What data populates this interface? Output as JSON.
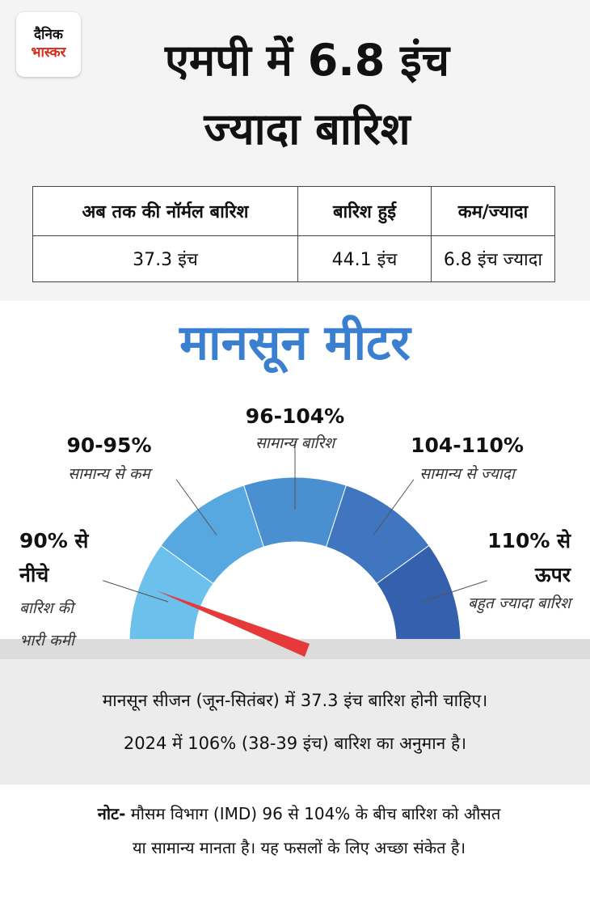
{
  "logo": {
    "line1": "दैनिक",
    "line2": "भास्कर"
  },
  "title": {
    "line1": "एमपी में 6.8 इंच",
    "line2": "ज्यादा बारिश"
  },
  "table": {
    "header": [
      "अब तक की नॉर्मल बारिश",
      "बारिश हुई",
      "कम/ज्यादा"
    ],
    "rows": [
      [
        "37.3 इंच",
        "44.1 इंच",
        "6.8 इंच ज्यादा"
      ]
    ]
  },
  "meter": {
    "title": "मानसून मीटर",
    "segments": [
      {
        "range": "90% से नीचे",
        "desc": "बारिश की भारी कमी"
      },
      {
        "range": "90-95%",
        "desc": "सामान्य से कम"
      },
      {
        "range": "96-104%",
        "desc": "सामान्य बारिश"
      },
      {
        "range": "104-110%",
        "desc": "सामान्य से ज्यादा"
      },
      {
        "range": "110% से ऊपर",
        "desc": "बहुत ज्यादा बारिश"
      }
    ]
  },
  "info": {
    "line1": "मानसून सीजन (जून-सितंबर) में 37.3 इंच बारिश होनी चाहिए।",
    "line2": "2024 में 106% (38-39 इंच) बारिश का अनुमान है।"
  },
  "note": {
    "label": "नोट-",
    "text": "मौसम विभाग (IMD) 96 से 104% के बीच बारिश को औसत या सामान्य मानता है। यह फसलों के लिए अच्छा संकेत है।"
  }
}
